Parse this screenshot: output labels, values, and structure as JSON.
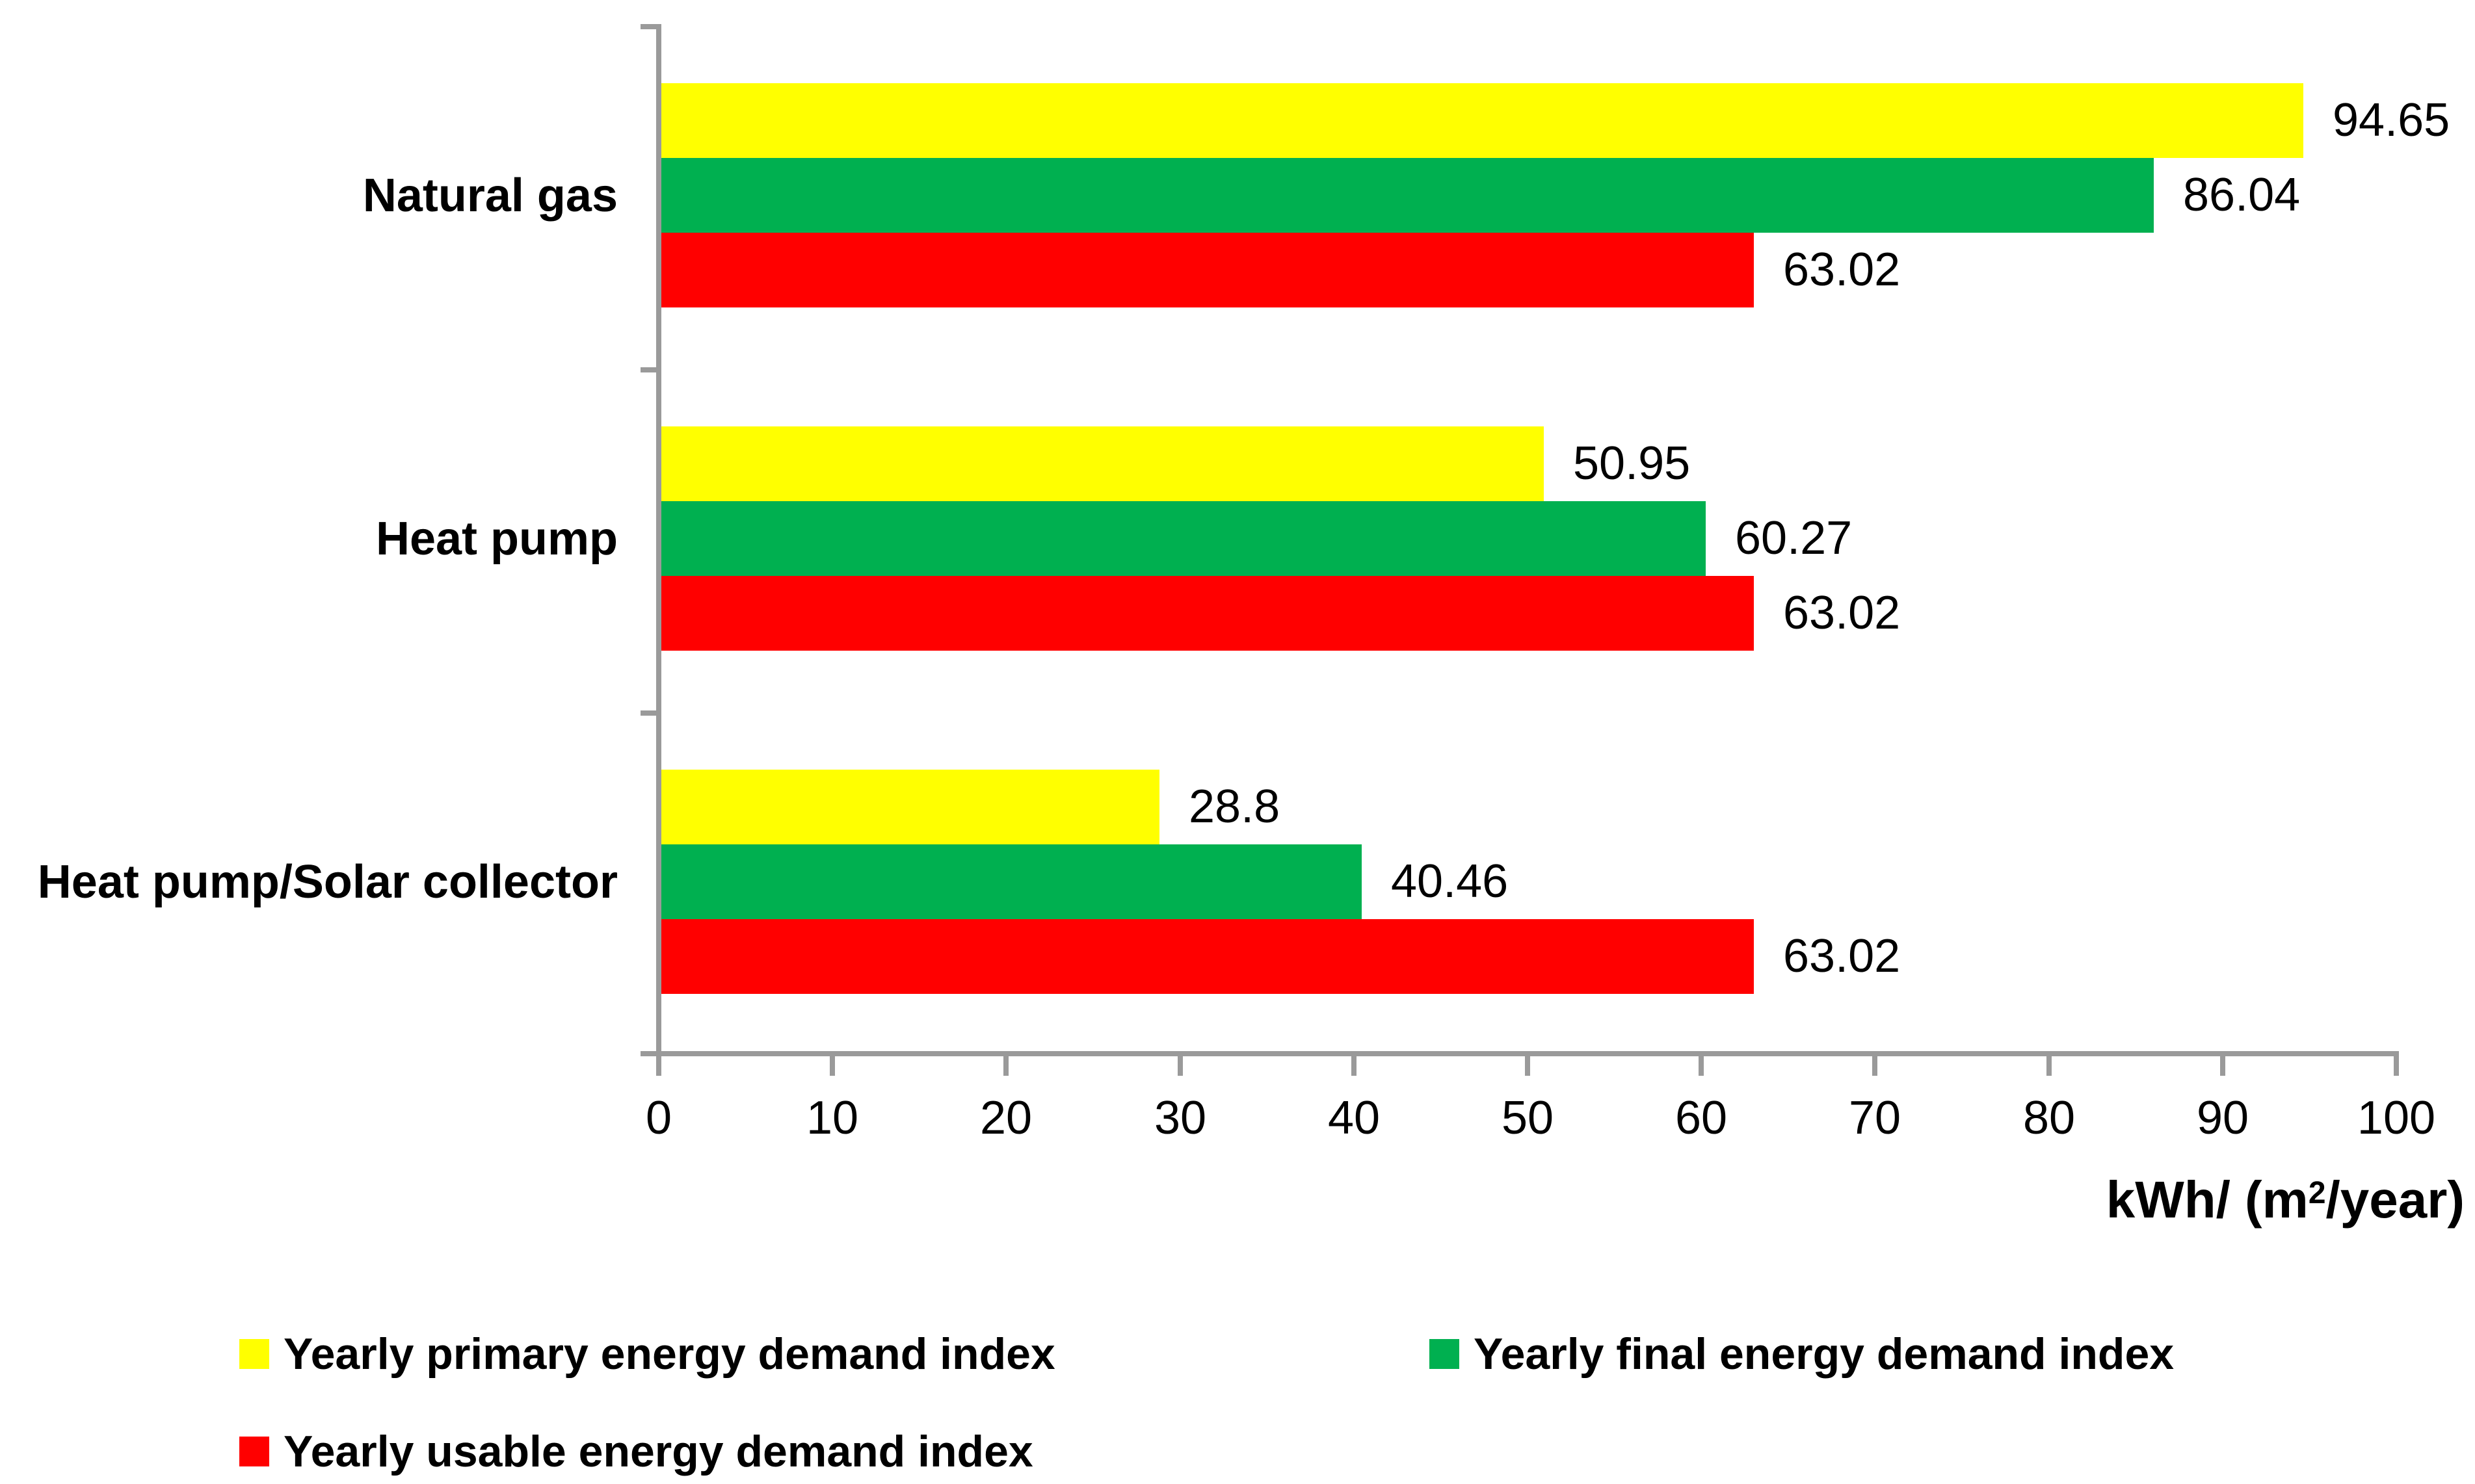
{
  "chart_data": {
    "type": "bar",
    "orientation": "horizontal",
    "title": "",
    "categories": [
      "Natural gas",
      "Heat pump",
      "Heat pump/Solar collector"
    ],
    "series": [
      {
        "name": "Yearly primary energy demand index",
        "color": "#FFFF00",
        "values": [
          94.65,
          50.95,
          28.8
        ]
      },
      {
        "name": "Yearly final energy demand index",
        "color": "#00B050",
        "values": [
          86.04,
          60.27,
          40.46
        ]
      },
      {
        "name": "Yearly usable energy demand index",
        "color": "#FF0000",
        "values": [
          63.02,
          63.02,
          63.02
        ]
      }
    ],
    "xlabel": {
      "prefix": "kWh/ (m",
      "superscript": "2",
      "suffix": "/year)"
    },
    "xlim": [
      0,
      100
    ],
    "xticks": [
      0,
      10,
      20,
      30,
      40,
      50,
      60,
      70,
      80,
      90,
      100
    ],
    "value_labels_shown": true,
    "grid": false,
    "legend_position": "bottom",
    "axis_color": "#9A9A9A",
    "background_color": "#FFFFFF",
    "text_color": "#000000"
  }
}
